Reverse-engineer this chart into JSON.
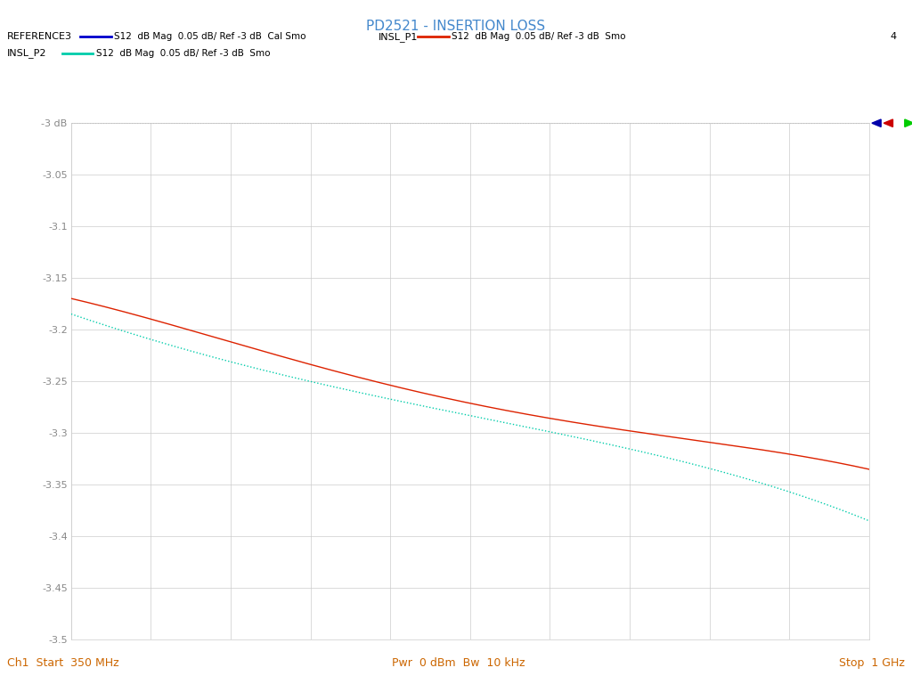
{
  "title": "PD2521 - INSERTION LOSS",
  "title_color": "#4488cc",
  "title_fontsize": 11,
  "xmin": 350000000.0,
  "xmax": 1000000000.0,
  "ymin": -3.5,
  "ymax": -3.0,
  "yticks": [
    -3.0,
    -3.05,
    -3.1,
    -3.15,
    -3.2,
    -3.25,
    -3.3,
    -3.35,
    -3.4,
    -3.45,
    -3.5
  ],
  "ytick_labels": [
    "-3 dB",
    "-3.05",
    "-3.1",
    "-3.15",
    "-3.2",
    "-3.25",
    "-3.3",
    "-3.35",
    "-3.4",
    "-3.45",
    "-3.5"
  ],
  "ref3_color": "#0000cc",
  "insl_p1_color": "#dd2200",
  "insl_p2_color": "#00ccaa",
  "bottom_text_left": "Ch1  Start  350 MHz",
  "bottom_text_center": "Pwr  0 dBm  Bw  10 kHz",
  "bottom_text_right": "Stop  1 GHz",
  "bottom_text_color": "#cc6600",
  "grid_color": "#cccccc",
  "bg_color": "#ffffff",
  "plot_bg_color": "#ffffff",
  "marker_blue": "#0000aa",
  "marker_red": "#cc0000",
  "marker_green": "#00cc00",
  "num_points": 500
}
